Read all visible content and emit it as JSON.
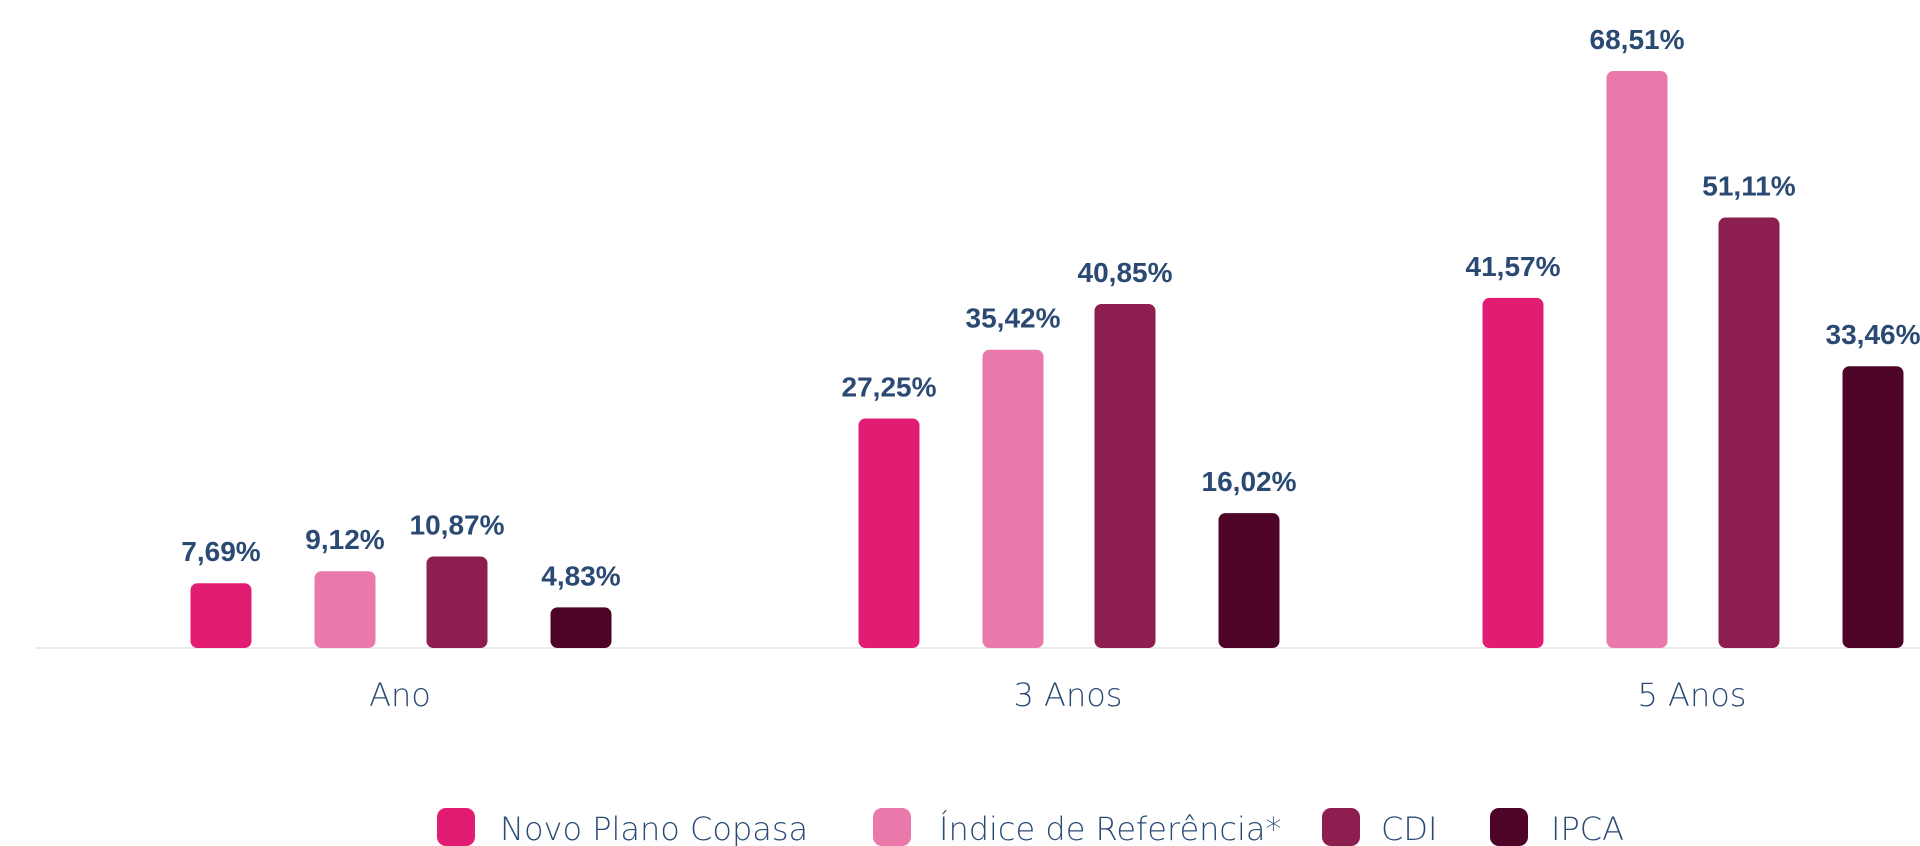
{
  "chart_data": {
    "type": "bar",
    "categories": [
      "Ano",
      "3 Anos",
      "5 Anos"
    ],
    "series": [
      {
        "name": "Novo Plano Copasa",
        "color": "#e31c73",
        "values": [
          7.69,
          27.25,
          41.57
        ],
        "value_labels": [
          "7,69%",
          "27,25%",
          "41,57%"
        ]
      },
      {
        "name": "Índice de Referência*",
        "color": "#e879aa",
        "values": [
          9.12,
          35.42,
          68.51
        ],
        "value_labels": [
          "9,12%",
          "35,42%",
          "68,51%"
        ]
      },
      {
        "name": "CDI",
        "color": "#8d1f50",
        "values": [
          10.87,
          40.85,
          51.11
        ],
        "value_labels": [
          "10,87%",
          "40,85%",
          "51,11%"
        ]
      },
      {
        "name": "IPCA",
        "color": "#4d0426",
        "values": [
          4.83,
          16.02,
          33.46
        ],
        "value_labels": [
          "4,83%",
          "16,02%",
          "33,46%"
        ]
      }
    ],
    "legend": "bottom"
  }
}
